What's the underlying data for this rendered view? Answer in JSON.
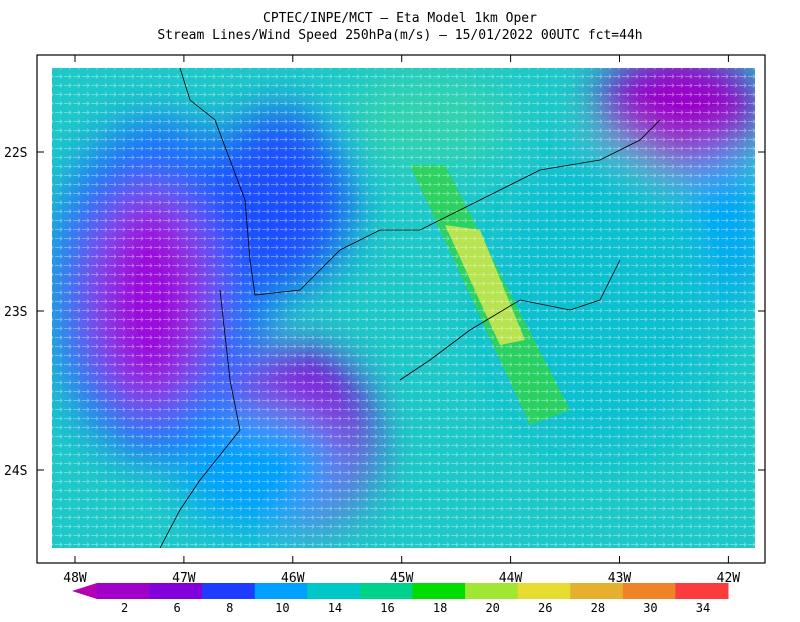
{
  "header": {
    "title": "CPTEC/INPE/MCT –  Eta Model 1km Oper",
    "subtitle": "Stream Lines/Wind Speed 250hPa(m/s) – 15/01/2022 00UTC fct=44h"
  },
  "axes": {
    "y_labels": [
      "22S",
      "23S",
      "24S"
    ],
    "x_labels": [
      "48W",
      "47W",
      "46W",
      "45W",
      "44W",
      "43W",
      "42W"
    ]
  },
  "colorbar": {
    "labels": [
      2,
      6,
      8,
      10,
      14,
      16,
      18,
      20,
      26,
      28,
      30,
      34
    ],
    "colors": [
      "#a000c8",
      "#8200dc",
      "#1e3cff",
      "#00a0ff",
      "#00c8c8",
      "#00d28c",
      "#00dc00",
      "#a0e632",
      "#e6dc32",
      "#e6af2d",
      "#f08228",
      "#fa3c3c"
    ],
    "low_color": "#b400b4",
    "high_color": "#f00082"
  }
}
